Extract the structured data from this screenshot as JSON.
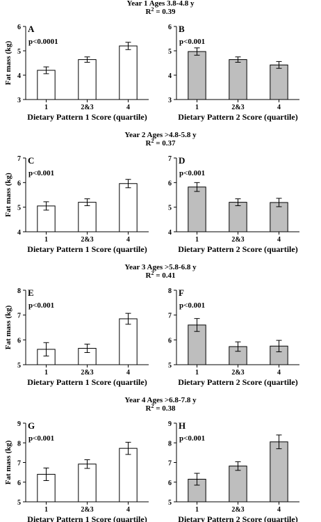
{
  "chart_data": [
    {
      "type": "bar",
      "year_title": "Year 1   Ages 3.8-4.8 y",
      "r2_prefix": "R",
      "r2_sup": "2",
      "r2_value": " = 0.39",
      "left": {
        "letter": "A",
        "pvalue": "p<0.0001",
        "categories": [
          "1",
          "2&3",
          "4"
        ],
        "values": [
          4.2,
          4.64,
          5.2
        ],
        "errors": [
          0.14,
          0.11,
          0.15
        ],
        "ylim": [
          3,
          6
        ],
        "yticks": [
          "3",
          "4",
          "5",
          "6"
        ],
        "ylabel": "Fat mass (kg)",
        "xlabel": "Dietary Pattern 1 Score (quartile)",
        "fill": "#ffffff"
      },
      "right": {
        "letter": "B",
        "pvalue": "p<0.001",
        "categories": [
          "1",
          "2&3",
          "4"
        ],
        "values": [
          4.97,
          4.64,
          4.42
        ],
        "errors": [
          0.15,
          0.11,
          0.14
        ],
        "ylim": [
          3,
          6
        ],
        "yticks": [
          "3",
          "4",
          "5",
          "6"
        ],
        "xlabel": "Dietary Pattern 2 Score (quartile)",
        "fill": "#bebebe"
      }
    },
    {
      "type": "bar",
      "year_title": "Year 2   Ages >4.8-5.8 y",
      "r2_prefix": "R",
      "r2_sup": "2",
      "r2_value": " = 0.37",
      "left": {
        "letter": "C",
        "pvalue": "p<0.001",
        "categories": [
          "1",
          "2&3",
          "4"
        ],
        "values": [
          5.05,
          5.2,
          5.96
        ],
        "errors": [
          0.17,
          0.14,
          0.17
        ],
        "ylim": [
          4,
          7
        ],
        "yticks": [
          "4",
          "5",
          "6",
          "7"
        ],
        "ylabel": "Fat mass (kg)",
        "xlabel": "Dietary Pattern 1 Score (quartile)",
        "fill": "#ffffff"
      },
      "right": {
        "letter": "D",
        "pvalue": "p<0.001",
        "categories": [
          "1",
          "2&3",
          "4"
        ],
        "values": [
          5.82,
          5.2,
          5.19
        ],
        "errors": [
          0.18,
          0.14,
          0.17
        ],
        "ylim": [
          4,
          7
        ],
        "yticks": [
          "4",
          "5",
          "6",
          "7"
        ],
        "xlabel": "Dietary Pattern 2 Score (quartile)",
        "fill": "#bebebe"
      }
    },
    {
      "type": "bar",
      "year_title": "Year 3   Ages >5.8-6.8 y",
      "r2_prefix": "R",
      "r2_sup": "2",
      "r2_value": " = 0.41",
      "left": {
        "letter": "E",
        "pvalue": "p<0.001",
        "categories": [
          "1",
          "2&3",
          "4"
        ],
        "values": [
          5.62,
          5.66,
          6.85
        ],
        "errors": [
          0.27,
          0.17,
          0.22
        ],
        "ylim": [
          5,
          8
        ],
        "yticks": [
          "5",
          "6",
          "7",
          "8"
        ],
        "ylabel": "Fat mass (kg)",
        "xlabel": "Dietary Pattern 1 Score (quartile)",
        "fill": "#ffffff"
      },
      "right": {
        "letter": "F",
        "pvalue": "p<0.001",
        "categories": [
          "1",
          "2&3",
          "4"
        ],
        "values": [
          6.6,
          5.73,
          5.75
        ],
        "errors": [
          0.26,
          0.19,
          0.23
        ],
        "ylim": [
          5,
          8
        ],
        "yticks": [
          "5",
          "6",
          "7",
          "8"
        ],
        "xlabel": "Dietary Pattern 2 Score (quartile)",
        "fill": "#bebebe"
      }
    },
    {
      "type": "bar",
      "year_title": "Year 4   Ages >6.8-7.8 y",
      "r2_prefix": "R",
      "r2_sup": "2",
      "r2_value": " = 0.38",
      "left": {
        "letter": "G",
        "pvalue": "p<0.001",
        "categories": [
          "1",
          "2&3",
          "4"
        ],
        "values": [
          6.4,
          6.92,
          7.72
        ],
        "errors": [
          0.32,
          0.22,
          0.31
        ],
        "ylim": [
          5,
          9
        ],
        "yticks": [
          "5",
          "6",
          "7",
          "8",
          "9"
        ],
        "ylabel": "Fat mass (kg)",
        "xlabel": "Dietary Pattern 1 Score (quartile)",
        "fill": "#ffffff"
      },
      "right": {
        "letter": "H",
        "pvalue": "p<0.001",
        "categories": [
          "1",
          "2&3",
          "4"
        ],
        "values": [
          6.15,
          6.82,
          8.05
        ],
        "errors": [
          0.3,
          0.22,
          0.35
        ],
        "ylim": [
          5,
          9
        ],
        "yticks": [
          "5",
          "6",
          "7",
          "8",
          "9"
        ],
        "xlabel": "Dietary Pattern 2 Score (quartile)",
        "fill": "#bebebe"
      }
    }
  ]
}
